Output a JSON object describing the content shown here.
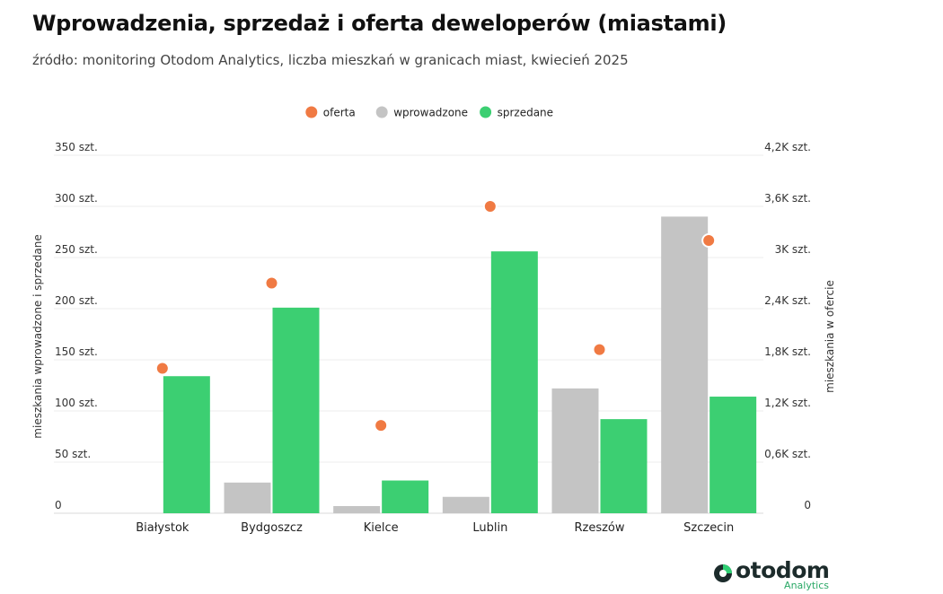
{
  "header": {
    "title": "Wprowadzenia, sprzedaż i oferta deweloperów (miastami)",
    "subtitle": "źródło: monitoring Otodom Analytics, liczba mieszkań w granicach miast, kwiecień 2025"
  },
  "logo": {
    "word": "otodom",
    "sub": "Analytics"
  },
  "chart_data": {
    "type": "bar",
    "categories": [
      "Białystok",
      "Bydgoszcz",
      "Kielce",
      "Lublin",
      "Rzeszów",
      "Szczecin"
    ],
    "series": [
      {
        "name": "wprowadzone",
        "kind": "bar",
        "axis": "left",
        "color": "#c4c4c4",
        "values": [
          0,
          30,
          7,
          16,
          122,
          290
        ]
      },
      {
        "name": "sprzedane",
        "kind": "bar",
        "axis": "left",
        "color": "#3ccf72",
        "values": [
          134,
          201,
          32,
          256,
          92,
          114
        ]
      },
      {
        "name": "oferta",
        "kind": "scatter",
        "axis": "right",
        "color": "#f07a43",
        "values": [
          1700,
          2700,
          1030,
          3600,
          1920,
          3200
        ]
      }
    ],
    "legend": {
      "placement": "top-center",
      "order": [
        "oferta",
        "wprowadzone",
        "sprzedane"
      ]
    },
    "y_left": {
      "label": "mieszkania wprowadzone i sprzedane",
      "ylim": [
        0,
        350
      ],
      "ticks": [
        0,
        50,
        100,
        150,
        200,
        250,
        300,
        350
      ],
      "tick_labels": [
        "0",
        "50 szt.",
        "100 szt.",
        "150 szt.",
        "200 szt.",
        "250 szt.",
        "300 szt.",
        "350 szt."
      ]
    },
    "y_right": {
      "label": "mieszkania w ofercie",
      "ylim": [
        0,
        4200
      ],
      "ticks": [
        0,
        600,
        1200,
        1800,
        2400,
        3000,
        3600,
        4200
      ],
      "tick_labels": [
        "0",
        "0,6K szt.",
        "1,2K szt.",
        "1,8K szt.",
        "2,4K szt.",
        "3K szt.",
        "3,6K szt.",
        "4,2K szt."
      ]
    },
    "grid": true
  }
}
